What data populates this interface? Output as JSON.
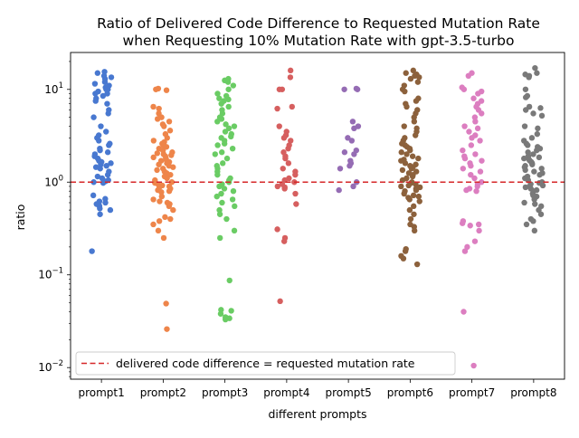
{
  "chart_data": {
    "type": "scatter",
    "title_line1": "Ratio of Delivered Code Difference to Requested Mutation Rate",
    "title_line2": "when Requesting 10% Mutation Rate with gpt-3.5-turbo",
    "xlabel": "different prompts",
    "ylabel": "ratio",
    "yscale": "log",
    "ylim": [
      0.0075,
      25
    ],
    "yticks": [
      {
        "value": 0.01,
        "base": "10",
        "exp": "−2"
      },
      {
        "value": 0.1,
        "base": "10",
        "exp": "−1"
      },
      {
        "value": 1,
        "base": "10",
        "exp": "0"
      },
      {
        "value": 10,
        "base": "10",
        "exp": "1"
      }
    ],
    "categories": [
      "prompt1",
      "prompt2",
      "prompt3",
      "prompt4",
      "prompt5",
      "prompt6",
      "prompt7",
      "prompt8"
    ],
    "reference_line": {
      "y": 1.0,
      "label": "delivered code difference = requested mutation rate",
      "color": "#d62728"
    },
    "legend_position": "lower left",
    "series": [
      {
        "category": "prompt1",
        "color": "#4878d0",
        "values": [
          15.5,
          15,
          14,
          13.5,
          13,
          12,
          11.5,
          11,
          10.5,
          10,
          10,
          9.5,
          9,
          9,
          8.5,
          8,
          7.5,
          7,
          6,
          5.5,
          5,
          4,
          3.5,
          3.2,
          3,
          2.8,
          2.6,
          2.5,
          2.3,
          2.2,
          2.1,
          2,
          1.9,
          1.8,
          1.7,
          1.65,
          1.6,
          1.55,
          1.5,
          1.45,
          1.4,
          1.3,
          1.2,
          1.15,
          1.1,
          1.05,
          1.02,
          1.0,
          0.98,
          0.72,
          0.66,
          0.62,
          0.6,
          0.58,
          0.56,
          0.55,
          0.52,
          0.5,
          0.45,
          0.18
        ]
      },
      {
        "category": "prompt2",
        "color": "#ee854a",
        "values": [
          10.2,
          10,
          9.8,
          6.5,
          6.2,
          5.5,
          5,
          4.8,
          4.5,
          4.2,
          4,
          3.6,
          3.3,
          3,
          2.8,
          2.7,
          2.6,
          2.5,
          2.4,
          2.3,
          2.2,
          2.1,
          2.05,
          2,
          1.95,
          1.9,
          1.85,
          1.8,
          1.75,
          1.7,
          1.65,
          1.6,
          1.55,
          1.5,
          1.45,
          1.4,
          1.35,
          1.3,
          1.25,
          1.2,
          1.15,
          1.1,
          1.05,
          1.0,
          0.98,
          0.95,
          0.92,
          0.9,
          0.88,
          0.85,
          0.82,
          0.8,
          0.78,
          0.7,
          0.65,
          0.62,
          0.6,
          0.58,
          0.55,
          0.5,
          0.42,
          0.4,
          0.38,
          0.35,
          0.3,
          0.25,
          0.049,
          0.026
        ]
      },
      {
        "category": "prompt3",
        "color": "#6acc64",
        "values": [
          13,
          12.5,
          12,
          11,
          10,
          9,
          8.5,
          8,
          7.8,
          7.5,
          7,
          6.5,
          6,
          5.5,
          5,
          4.8,
          4.5,
          4.2,
          4,
          3.8,
          3.5,
          3.3,
          3.1,
          3,
          2.8,
          2.6,
          2.5,
          2.3,
          2.1,
          2,
          1.8,
          1.6,
          1.5,
          1.4,
          1.3,
          1.2,
          1.1,
          1.05,
          1.0,
          0.95,
          0.9,
          0.85,
          0.8,
          0.75,
          0.7,
          0.65,
          0.6,
          0.55,
          0.5,
          0.45,
          0.4,
          0.3,
          0.25,
          0.087,
          0.042,
          0.041,
          0.038,
          0.035,
          0.034,
          0.033
        ]
      },
      {
        "category": "prompt4",
        "color": "#d65f5f",
        "values": [
          16,
          13.5,
          10,
          10,
          6.5,
          6.2,
          4,
          3.5,
          3.2,
          3,
          2.8,
          2.5,
          2.3,
          2.1,
          1.9,
          1.8,
          1.6,
          1.4,
          1.3,
          1.2,
          1.1,
          1.05,
          1.0,
          0.95,
          0.9,
          0.88,
          0.85,
          0.75,
          0.58,
          0.31,
          0.25,
          0.23,
          0.052
        ]
      },
      {
        "category": "prompt5",
        "color": "#956cb4",
        "values": [
          10.2,
          10,
          10,
          4.5,
          4,
          3.8,
          3,
          2.8,
          2.2,
          2.1,
          2,
          1.7,
          1.6,
          1.5,
          1.4,
          1.0,
          0.9,
          0.82
        ]
      },
      {
        "category": "prompt6",
        "color": "#8c613c",
        "values": [
          16,
          15,
          14.5,
          14,
          13.5,
          13,
          12,
          11,
          10,
          9.5,
          8,
          7.5,
          7,
          6.5,
          6,
          5.5,
          5,
          4.5,
          4,
          3.8,
          3.5,
          3.2,
          3,
          2.8,
          2.6,
          2.5,
          2.4,
          2.3,
          2.2,
          2.1,
          2,
          1.9,
          1.8,
          1.75,
          1.7,
          1.6,
          1.55,
          1.5,
          1.45,
          1.4,
          1.35,
          1.3,
          1.25,
          1.2,
          1.15,
          1.1,
          1.05,
          1.0,
          0.98,
          0.95,
          0.92,
          0.9,
          0.88,
          0.85,
          0.82,
          0.8,
          0.75,
          0.72,
          0.7,
          0.68,
          0.65,
          0.62,
          0.55,
          0.5,
          0.45,
          0.4,
          0.35,
          0.33,
          0.3,
          0.19,
          0.18,
          0.16,
          0.15,
          0.13
        ]
      },
      {
        "category": "prompt7",
        "color": "#dc7ec0",
        "values": [
          15,
          14,
          10.5,
          10,
          9.5,
          9,
          8,
          7.5,
          7,
          6.5,
          6,
          5.5,
          5,
          4.5,
          4,
          3.8,
          3.5,
          3.2,
          3,
          2.8,
          2.5,
          2.2,
          2,
          1.9,
          1.8,
          1.7,
          1.6,
          1.5,
          1.4,
          1.3,
          1.2,
          1.1,
          1.0,
          0.95,
          0.9,
          0.85,
          0.82,
          0.8,
          0.38,
          0.36,
          0.35,
          0.34,
          0.3,
          0.23,
          0.2,
          0.18,
          0.04,
          0.0105
        ]
      },
      {
        "category": "prompt8",
        "color": "#797979",
        "values": [
          17,
          15,
          14.5,
          14,
          13.5,
          10,
          8.5,
          8.2,
          6.5,
          6.3,
          6,
          5.5,
          5.2,
          4,
          3.8,
          3.3,
          3,
          2.8,
          2.6,
          2.5,
          2.4,
          2.3,
          2.2,
          2.1,
          2,
          1.9,
          1.85,
          1.8,
          1.75,
          1.7,
          1.65,
          1.6,
          1.55,
          1.5,
          1.45,
          1.4,
          1.35,
          1.3,
          1.25,
          1.2,
          1.15,
          1.1,
          1.05,
          1.0,
          0.98,
          0.95,
          0.92,
          0.9,
          0.88,
          0.85,
          0.82,
          0.8,
          0.75,
          0.72,
          0.7,
          0.65,
          0.6,
          0.58,
          0.55,
          0.5,
          0.45,
          0.4,
          0.38,
          0.35,
          0.3
        ]
      }
    ]
  }
}
